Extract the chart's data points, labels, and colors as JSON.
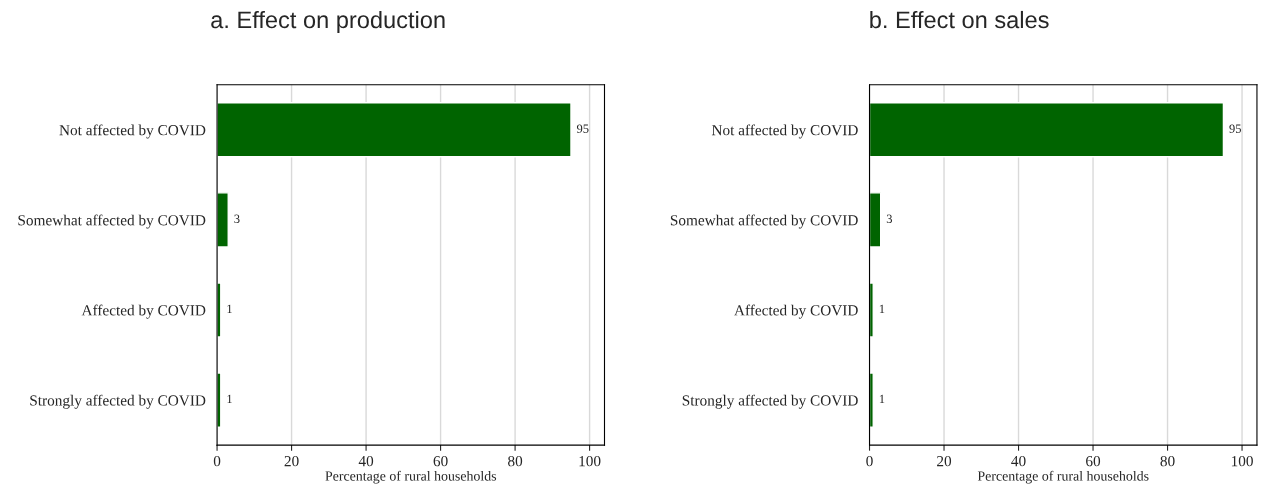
{
  "chart_data": [
    {
      "type": "bar",
      "title": "a. Effect on production",
      "orientation": "horizontal",
      "categories": [
        "Not affected by COVID",
        "Somewhat affected by COVID",
        "Affected by COVID",
        "Strongly affected by COVID"
      ],
      "values": [
        95,
        3,
        1,
        1
      ],
      "color": "#006400",
      "xlabel": "Percentage of rural households",
      "xlim": [
        0,
        104
      ],
      "xticks": [
        0,
        20,
        40,
        60,
        80,
        100
      ],
      "grid": "x",
      "data_labels": true
    },
    {
      "type": "bar",
      "title": "b. Effect on sales",
      "orientation": "horizontal",
      "categories": [
        "Not affected by COVID",
        "Somewhat affected by COVID",
        "Affected by COVID",
        "Strongly affected by COVID"
      ],
      "values": [
        95,
        3,
        1,
        1
      ],
      "color": "#006400",
      "xlabel": "Percentage of rural households",
      "xlim": [
        0,
        104
      ],
      "xticks": [
        0,
        20,
        40,
        60,
        80,
        100
      ],
      "grid": "x",
      "data_labels": true
    }
  ]
}
